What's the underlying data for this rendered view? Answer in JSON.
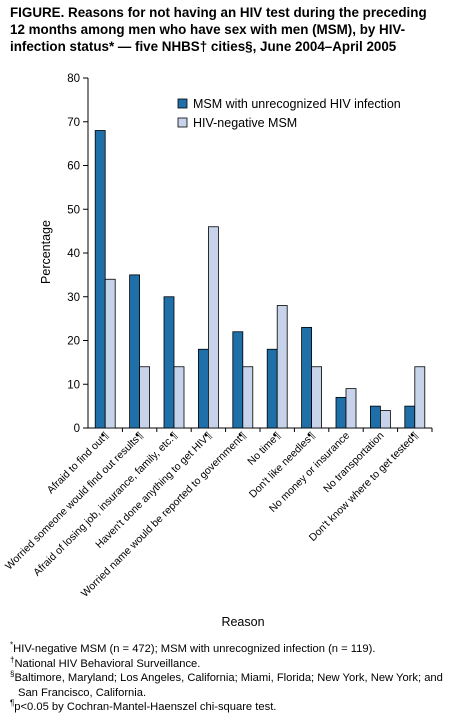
{
  "figure": {
    "title": "FIGURE. Reasons for not having an HIV test during the preceding 12 months among men who have sex with men (MSM), by HIV-infection status* — five NHBS† cities§, June 2004–April 2005",
    "footnotes": [
      {
        "mark": "*",
        "text": "HIV-negative MSM (n = 472); MSM with unrecognized infection (n = 119)."
      },
      {
        "mark": "†",
        "text": "National HIV Behavioral Surveillance."
      },
      {
        "mark": "§",
        "text": "Baltimore, Maryland; Los Angeles, California; Miami, Florida; New York, New York; and San Francisco, California."
      },
      {
        "mark": "¶",
        "text": "p<0.05 by Cochran-Mantel-Haenszel chi-square test."
      }
    ]
  },
  "chart_data": {
    "type": "bar",
    "title": "",
    "xlabel": "Reason",
    "ylabel": "Percentage",
    "ylim": [
      0,
      80
    ],
    "yticks": [
      0,
      10,
      20,
      30,
      40,
      50,
      60,
      70,
      80
    ],
    "grid": false,
    "legend_position": "top-right",
    "categories": [
      "Afraid to find out¶",
      "Worried someone would find out results¶",
      "Afraid of losing job, insurance, family, etc.¶",
      "Haven't done anything to get HIV¶",
      "Worried name would be reported to government¶",
      "No time¶",
      "Don't like needles¶",
      "No money or insurance",
      "No transportation",
      "Don't know where to get tested¶"
    ],
    "series": [
      {
        "name": "MSM with unrecognized HIV infection",
        "color": "#1f6fa8",
        "values": [
          68,
          35,
          30,
          18,
          22,
          18,
          23,
          7,
          5,
          5
        ]
      },
      {
        "name": "HIV-negative MSM",
        "color": "#c6d3ea",
        "values": [
          34,
          14,
          14,
          46,
          14,
          28,
          14,
          9,
          4,
          14
        ]
      }
    ]
  }
}
